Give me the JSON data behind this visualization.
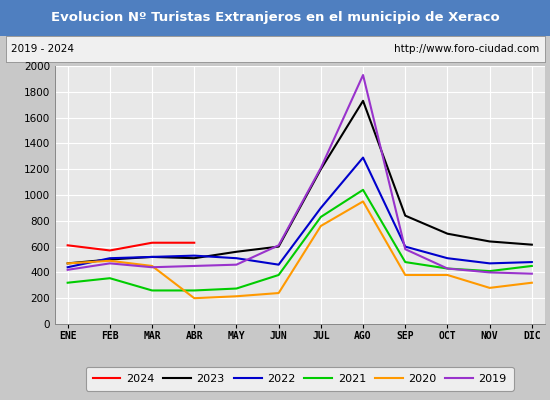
{
  "title": "Evolucion Nº Turistas Extranjeros en el municipio de Xeraco",
  "subtitle_left": "2019 - 2024",
  "subtitle_right": "http://www.foro-ciudad.com",
  "months": [
    "ENE",
    "FEB",
    "MAR",
    "ABR",
    "MAY",
    "JUN",
    "JUL",
    "AGO",
    "SEP",
    "OCT",
    "NOV",
    "DIC"
  ],
  "title_bg": "#4f7fc0",
  "title_color": "#ffffff",
  "plot_bg": "#e8e8e8",
  "grid_color": "#ffffff",
  "outer_bg": "#c8c8c8",
  "series_order": [
    "2024",
    "2023",
    "2022",
    "2021",
    "2020",
    "2019"
  ],
  "series": {
    "2024": {
      "color": "#ff0000",
      "data": [
        610,
        570,
        630,
        630,
        null,
        null,
        null,
        null,
        null,
        null,
        null,
        null
      ]
    },
    "2023": {
      "color": "#000000",
      "data": [
        470,
        500,
        520,
        510,
        560,
        600,
        1200,
        1730,
        840,
        700,
        640,
        615
      ]
    },
    "2022": {
      "color": "#0000cc",
      "data": [
        440,
        510,
        520,
        530,
        510,
        460,
        900,
        1290,
        600,
        510,
        470,
        480
      ]
    },
    "2021": {
      "color": "#00cc00",
      "data": [
        320,
        355,
        260,
        260,
        275,
        380,
        830,
        1040,
        480,
        430,
        410,
        450
      ]
    },
    "2020": {
      "color": "#ff9900",
      "data": [
        470,
        490,
        450,
        200,
        215,
        240,
        760,
        950,
        380,
        380,
        280,
        320
      ]
    },
    "2019": {
      "color": "#9933cc",
      "data": [
        420,
        470,
        440,
        450,
        460,
        610,
        1210,
        1930,
        580,
        430,
        400,
        390
      ]
    }
  },
  "ylim": [
    0,
    2000
  ],
  "yticks": [
    0,
    200,
    400,
    600,
    800,
    1000,
    1200,
    1400,
    1600,
    1800,
    2000
  ]
}
